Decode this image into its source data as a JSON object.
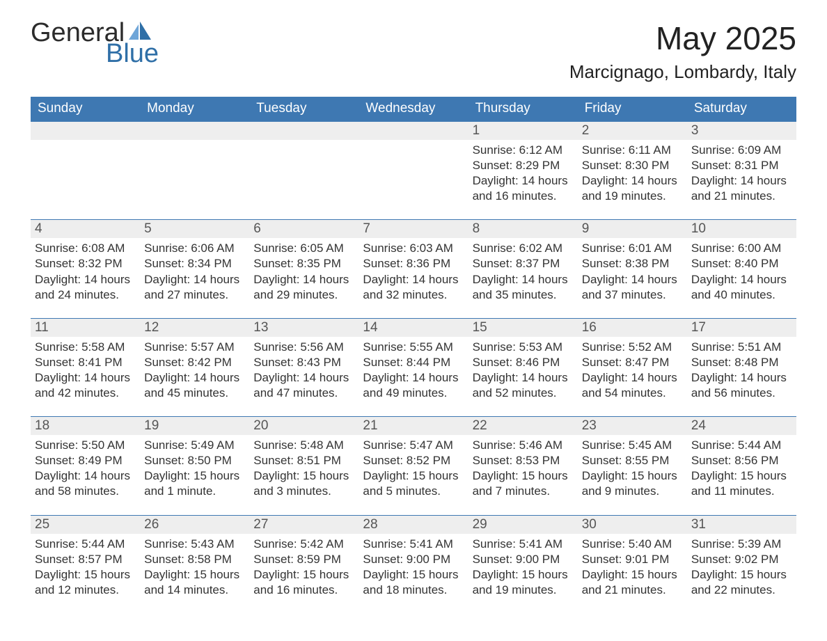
{
  "brand": {
    "word1": "General",
    "word2": "Blue",
    "logo_dark_color": "#2b2b2b",
    "logo_blue_color": "#2f6fa7",
    "sail_light": "#6ea5d8",
    "sail_dark": "#2f6fa7"
  },
  "title": "May 2025",
  "subtitle": "Marcignago, Lombardy, Italy",
  "colors": {
    "header_bg": "#3e78b2",
    "header_text": "#ffffff",
    "daynum_bg": "#eeeeee",
    "daynum_text": "#555555",
    "body_text": "#333333",
    "page_bg": "#ffffff",
    "row_border": "#3e78b2"
  },
  "typography": {
    "title_fontsize": 46,
    "subtitle_fontsize": 26,
    "header_fontsize": 19,
    "daynum_fontsize": 19,
    "body_fontsize": 17,
    "font_family": "Segoe UI, Arial, Helvetica, sans-serif"
  },
  "layout": {
    "columns": 7,
    "weeks": 5,
    "first_weekday_index": 4
  },
  "weekdays": [
    "Sunday",
    "Monday",
    "Tuesday",
    "Wednesday",
    "Thursday",
    "Friday",
    "Saturday"
  ],
  "labels": {
    "sunrise": "Sunrise:",
    "sunset": "Sunset:",
    "daylight": "Daylight:"
  },
  "days": [
    {
      "n": 1,
      "sunrise": "6:12 AM",
      "sunset": "8:29 PM",
      "daylight": "14 hours and 16 minutes."
    },
    {
      "n": 2,
      "sunrise": "6:11 AM",
      "sunset": "8:30 PM",
      "daylight": "14 hours and 19 minutes."
    },
    {
      "n": 3,
      "sunrise": "6:09 AM",
      "sunset": "8:31 PM",
      "daylight": "14 hours and 21 minutes."
    },
    {
      "n": 4,
      "sunrise": "6:08 AM",
      "sunset": "8:32 PM",
      "daylight": "14 hours and 24 minutes."
    },
    {
      "n": 5,
      "sunrise": "6:06 AM",
      "sunset": "8:34 PM",
      "daylight": "14 hours and 27 minutes."
    },
    {
      "n": 6,
      "sunrise": "6:05 AM",
      "sunset": "8:35 PM",
      "daylight": "14 hours and 29 minutes."
    },
    {
      "n": 7,
      "sunrise": "6:03 AM",
      "sunset": "8:36 PM",
      "daylight": "14 hours and 32 minutes."
    },
    {
      "n": 8,
      "sunrise": "6:02 AM",
      "sunset": "8:37 PM",
      "daylight": "14 hours and 35 minutes."
    },
    {
      "n": 9,
      "sunrise": "6:01 AM",
      "sunset": "8:38 PM",
      "daylight": "14 hours and 37 minutes."
    },
    {
      "n": 10,
      "sunrise": "6:00 AM",
      "sunset": "8:40 PM",
      "daylight": "14 hours and 40 minutes."
    },
    {
      "n": 11,
      "sunrise": "5:58 AM",
      "sunset": "8:41 PM",
      "daylight": "14 hours and 42 minutes."
    },
    {
      "n": 12,
      "sunrise": "5:57 AM",
      "sunset": "8:42 PM",
      "daylight": "14 hours and 45 minutes."
    },
    {
      "n": 13,
      "sunrise": "5:56 AM",
      "sunset": "8:43 PM",
      "daylight": "14 hours and 47 minutes."
    },
    {
      "n": 14,
      "sunrise": "5:55 AM",
      "sunset": "8:44 PM",
      "daylight": "14 hours and 49 minutes."
    },
    {
      "n": 15,
      "sunrise": "5:53 AM",
      "sunset": "8:46 PM",
      "daylight": "14 hours and 52 minutes."
    },
    {
      "n": 16,
      "sunrise": "5:52 AM",
      "sunset": "8:47 PM",
      "daylight": "14 hours and 54 minutes."
    },
    {
      "n": 17,
      "sunrise": "5:51 AM",
      "sunset": "8:48 PM",
      "daylight": "14 hours and 56 minutes."
    },
    {
      "n": 18,
      "sunrise": "5:50 AM",
      "sunset": "8:49 PM",
      "daylight": "14 hours and 58 minutes."
    },
    {
      "n": 19,
      "sunrise": "5:49 AM",
      "sunset": "8:50 PM",
      "daylight": "15 hours and 1 minute."
    },
    {
      "n": 20,
      "sunrise": "5:48 AM",
      "sunset": "8:51 PM",
      "daylight": "15 hours and 3 minutes."
    },
    {
      "n": 21,
      "sunrise": "5:47 AM",
      "sunset": "8:52 PM",
      "daylight": "15 hours and 5 minutes."
    },
    {
      "n": 22,
      "sunrise": "5:46 AM",
      "sunset": "8:53 PM",
      "daylight": "15 hours and 7 minutes."
    },
    {
      "n": 23,
      "sunrise": "5:45 AM",
      "sunset": "8:55 PM",
      "daylight": "15 hours and 9 minutes."
    },
    {
      "n": 24,
      "sunrise": "5:44 AM",
      "sunset": "8:56 PM",
      "daylight": "15 hours and 11 minutes."
    },
    {
      "n": 25,
      "sunrise": "5:44 AM",
      "sunset": "8:57 PM",
      "daylight": "15 hours and 12 minutes."
    },
    {
      "n": 26,
      "sunrise": "5:43 AM",
      "sunset": "8:58 PM",
      "daylight": "15 hours and 14 minutes."
    },
    {
      "n": 27,
      "sunrise": "5:42 AM",
      "sunset": "8:59 PM",
      "daylight": "15 hours and 16 minutes."
    },
    {
      "n": 28,
      "sunrise": "5:41 AM",
      "sunset": "9:00 PM",
      "daylight": "15 hours and 18 minutes."
    },
    {
      "n": 29,
      "sunrise": "5:41 AM",
      "sunset": "9:00 PM",
      "daylight": "15 hours and 19 minutes."
    },
    {
      "n": 30,
      "sunrise": "5:40 AM",
      "sunset": "9:01 PM",
      "daylight": "15 hours and 21 minutes."
    },
    {
      "n": 31,
      "sunrise": "5:39 AM",
      "sunset": "9:02 PM",
      "daylight": "15 hours and 22 minutes."
    }
  ]
}
